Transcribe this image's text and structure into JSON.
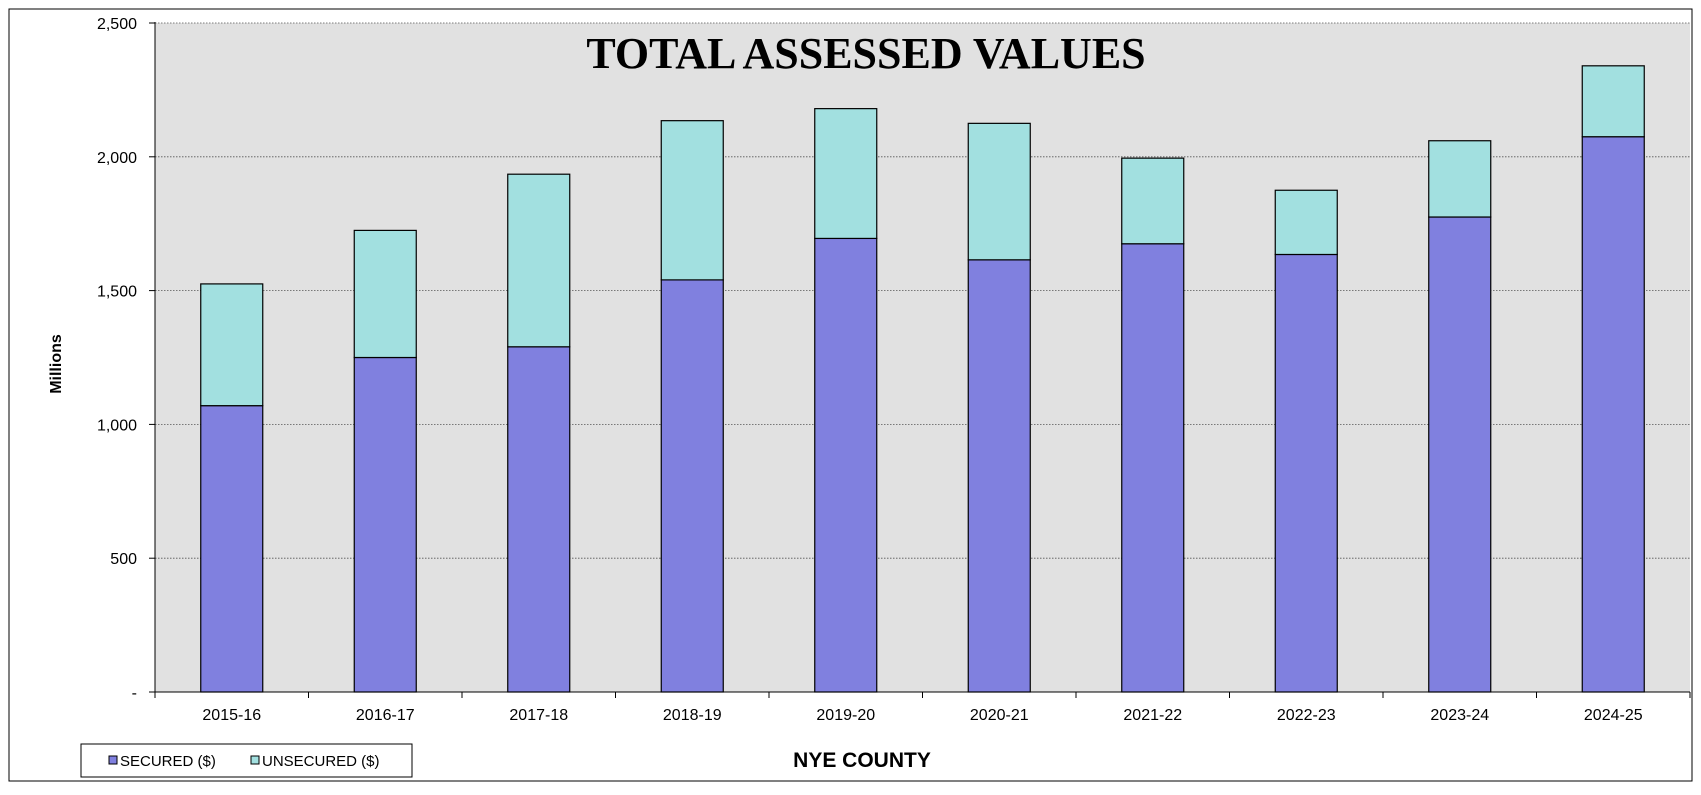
{
  "chart_data": {
    "type": "bar",
    "stacked": true,
    "title": "TOTAL ASSESSED VALUES",
    "xlabel": "NYE COUNTY",
    "ylabel": "Millions",
    "ylim": [
      0,
      2500
    ],
    "yticks": [
      {
        "value": 0,
        "label": "-"
      },
      {
        "value": 500,
        "label": "500"
      },
      {
        "value": 1000,
        "label": "1,000"
      },
      {
        "value": 1500,
        "label": "1,500"
      },
      {
        "value": 2000,
        "label": "2,000"
      },
      {
        "value": 2500,
        "label": "2,500"
      }
    ],
    "grid": true,
    "legend_position": "bottom-left",
    "categories": [
      "2015-16",
      "2016-17",
      "2017-18",
      "2018-19",
      "2019-20",
      "2020-21",
      "2021-22",
      "2022-23",
      "2023-24",
      "2024-25"
    ],
    "series": [
      {
        "name": "SECURED ($)",
        "color": "#8080DF",
        "values": [
          1070,
          1250,
          1290,
          1540,
          1695,
          1615,
          1675,
          1635,
          1775,
          2075
        ]
      },
      {
        "name": "UNSECURED ($)",
        "color": "#A2E0E0",
        "values": [
          455,
          475,
          645,
          595,
          485,
          510,
          320,
          240,
          285,
          265
        ]
      }
    ],
    "plot_background": "#E1E1E1"
  }
}
